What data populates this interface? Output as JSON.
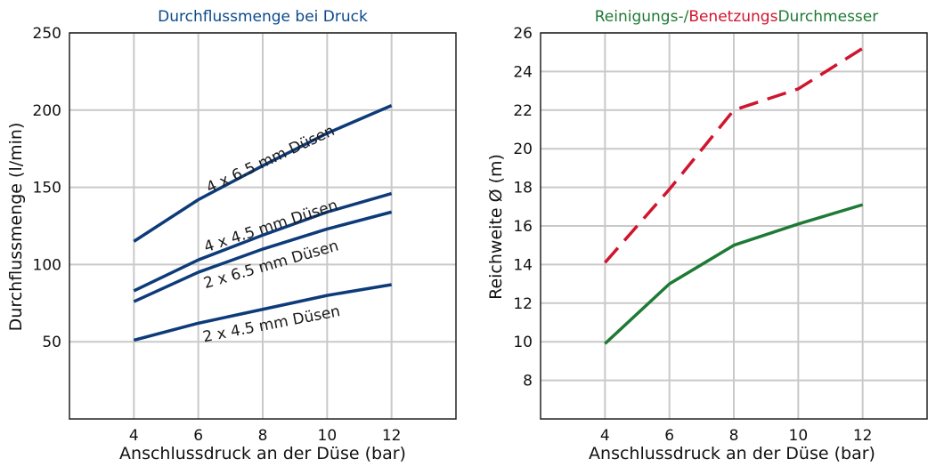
{
  "chart_data": [
    {
      "type": "line",
      "title": "Durchflussmenge bei Druck",
      "title_color": "#0b4a8b",
      "xlabel": "Anschlussdruck an der Düse (bar)",
      "ylabel": "Durchflussmenge (l/min)",
      "xlim": [
        2,
        14
      ],
      "ylim": [
        0,
        250
      ],
      "x_ticks": [
        4,
        6,
        8,
        10,
        12
      ],
      "y_ticks": [
        50,
        100,
        150,
        200,
        250
      ],
      "grid": true,
      "line_color": "#0d3b7a",
      "x": [
        4,
        6,
        8,
        10,
        12
      ],
      "series": [
        {
          "name": "4 x 6.5 mm Düsen",
          "values": [
            115,
            142,
            164,
            185,
            203
          ]
        },
        {
          "name": "4 x 4.5 mm Düsen",
          "values": [
            83,
            103,
            119,
            134,
            146
          ]
        },
        {
          "name": "2 x 6.5 mm Düsen",
          "values": [
            76,
            95,
            110,
            123,
            134
          ]
        },
        {
          "name": "2 x 4.5 mm Düsen",
          "values": [
            51,
            62,
            71,
            80,
            87
          ]
        }
      ]
    },
    {
      "type": "line",
      "title_parts": [
        {
          "text": "Reinigungs-/",
          "color": "#1e7a34"
        },
        {
          "text": "Benetzungs",
          "color": "#d0152f"
        },
        {
          "text": "Durchmesser",
          "color": "#1e7a34"
        }
      ],
      "xlabel": "Anschlussdruck an der Düse (bar)",
      "ylabel": "Reichweite Ø (m)",
      "xlim": [
        2,
        14
      ],
      "ylim": [
        6,
        26
      ],
      "x_ticks": [
        4,
        6,
        8,
        10,
        12
      ],
      "y_ticks": [
        8,
        10,
        12,
        14,
        16,
        18,
        20,
        22,
        24,
        26
      ],
      "grid": true,
      "x": [
        4,
        6,
        8,
        10,
        12
      ],
      "series": [
        {
          "values": [
            14.1,
            17.9,
            22.0,
            23.1,
            25.2
          ],
          "color": "#d0152f",
          "style": "dashed"
        },
        {
          "values": [
            9.9,
            13.0,
            15.0,
            16.1,
            17.1
          ],
          "color": "#1e7a34",
          "style": "solid"
        }
      ]
    }
  ]
}
